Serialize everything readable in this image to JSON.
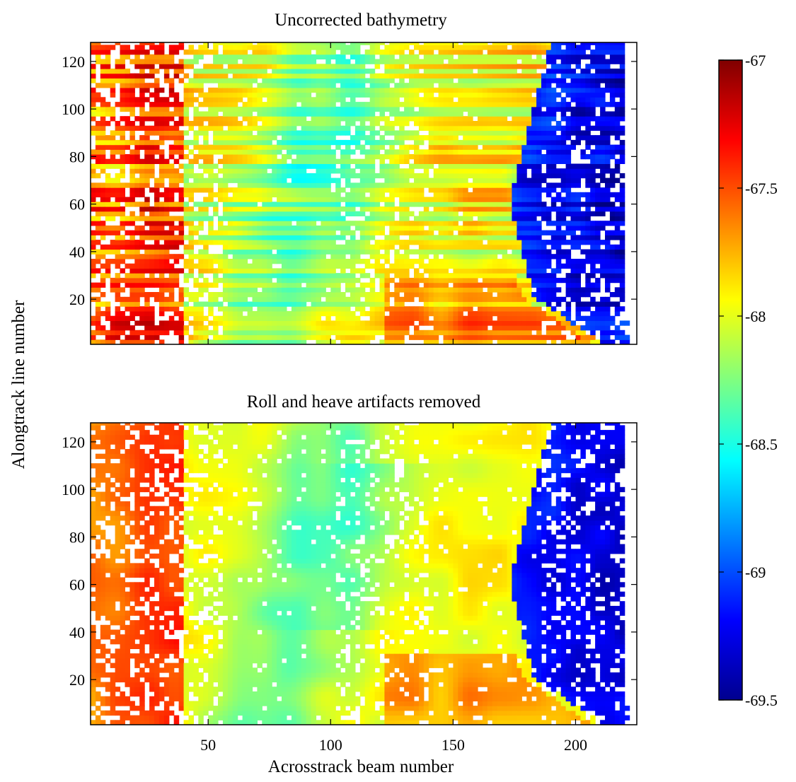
{
  "chart_data": [
    {
      "type": "heatmap",
      "title": "Uncorrected bathymetry",
      "xlabel": "",
      "ylabel": "",
      "xlim": [
        2,
        225
      ],
      "ylim": [
        1,
        128
      ],
      "xticks": [
        50,
        100,
        150,
        200
      ],
      "xtick_labels_visible": false,
      "yticks": [
        20,
        40,
        60,
        80,
        100,
        120
      ],
      "ytick_labels": [
        "20",
        "40",
        "60",
        "80",
        "100",
        "120"
      ],
      "description_of_field": {
        "left_edge_mean": -67.6,
        "central_band_mean": -68.0,
        "right_deep_region_mean": -69.2,
        "striping_alongtrack": true,
        "data_gaps_white": true
      }
    },
    {
      "type": "heatmap",
      "title": "Roll and heave artifacts removed",
      "xlabel": "Acrosstrack beam number",
      "ylabel": "",
      "xlim": [
        2,
        225
      ],
      "ylim": [
        1,
        128
      ],
      "xticks": [
        50,
        100,
        150,
        200
      ],
      "xtick_labels": [
        "50",
        "100",
        "150",
        "200"
      ],
      "yticks": [
        20,
        40,
        60,
        80,
        100,
        120
      ],
      "ytick_labels": [
        "20",
        "40",
        "60",
        "80",
        "100",
        "120"
      ],
      "description_of_field": {
        "left_edge_mean": -67.7,
        "central_band_mean": -68.0,
        "right_deep_region_mean": -69.2,
        "striping_alongtrack": false,
        "data_gaps_white": true
      }
    }
  ],
  "shared": {
    "ylabel": "Alongtrack line number",
    "colorbar": {
      "colormap": "jet",
      "min": -69.5,
      "max": -67,
      "ticks": [
        -67,
        -67.5,
        -68,
        -68.5,
        -69,
        -69.5
      ],
      "tick_labels": [
        "-67",
        "-67.5",
        "-68",
        "-68.5",
        "-69",
        "-69.5"
      ]
    }
  }
}
